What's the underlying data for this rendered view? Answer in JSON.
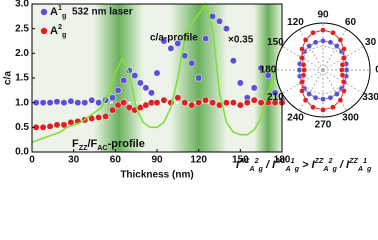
{
  "chart_data": [
    {
      "type": "scatter-line",
      "xlabel": "Thickness (nm)",
      "ylabel": "c/a",
      "xlim": [
        0,
        180
      ],
      "ylim": [
        0,
        3.0
      ],
      "xticks": [
        0,
        30,
        60,
        90,
        120,
        150,
        180
      ],
      "yticks": [
        {
          "value": 0,
          "label": "0.0"
        },
        {
          "value": 0.5,
          "label": "0.5"
        },
        {
          "value": 1.0,
          "label": "1.0"
        },
        {
          "value": 1.5,
          "label": "1.5"
        },
        {
          "value": 2.0,
          "label": "2.0"
        },
        {
          "value": 2.5,
          "label": "2.5"
        },
        {
          "value": 3.0,
          "label": "3.0"
        }
      ],
      "reference_line": 1.0,
      "shaded_ranges": [
        [
          45,
          80
        ],
        [
          100,
          140
        ],
        [
          160,
          180
        ]
      ],
      "annotations": {
        "laser": "532 nm laser",
        "profile": "c/a-profile",
        "scale": "×0.35"
      },
      "curve_label": [
        {
          "text": "F"
        },
        {
          "text": "ZZ",
          "script": "sub"
        },
        {
          "text": "/F"
        },
        {
          "text": "AC",
          "script": "sub"
        },
        {
          "text": "-profile"
        }
      ],
      "series": [
        {
          "name": [
            {
              "text": "A"
            },
            {
              "text": "1",
              "script": "sup"
            },
            {
              "text": "g",
              "script": "sub"
            }
          ],
          "color": "#5a4fd8",
          "kind": "scatter",
          "x": [
            3,
            8,
            13,
            18,
            23,
            28,
            33,
            38,
            43,
            48,
            53,
            58,
            62,
            66,
            70,
            74,
            78,
            82,
            86,
            90,
            95,
            100,
            105,
            110,
            115,
            120,
            125,
            130,
            135,
            140,
            145,
            150,
            155,
            160,
            165,
            170,
            175,
            180
          ],
          "values": [
            1.0,
            1.0,
            1.0,
            1.02,
            1.0,
            1.03,
            1.0,
            1.0,
            1.05,
            1.0,
            1.05,
            1.1,
            1.25,
            1.45,
            1.65,
            1.55,
            1.4,
            1.3,
            1.2,
            1.6,
            2.25,
            2.1,
            2.2,
            1.95,
            1.8,
            1.5,
            2.3,
            2.75,
            2.65,
            2.5,
            1.85,
            1.4,
            1.1,
            1.3,
            1.7,
            1.55,
            1.2,
            1.05
          ]
        },
        {
          "name": [
            {
              "text": "A"
            },
            {
              "text": "2",
              "script": "sup"
            },
            {
              "text": "g",
              "script": "sub"
            }
          ],
          "color": "#e02020",
          "kind": "scatter",
          "x": [
            3,
            8,
            13,
            18,
            23,
            28,
            33,
            38,
            43,
            48,
            53,
            58,
            62,
            66,
            70,
            74,
            78,
            82,
            86,
            90,
            95,
            100,
            105,
            110,
            115,
            120,
            125,
            130,
            135,
            140,
            145,
            150,
            155,
            160,
            165,
            170,
            175,
            180
          ],
          "values": [
            0.5,
            0.5,
            0.52,
            0.55,
            0.55,
            0.6,
            0.62,
            0.65,
            0.68,
            0.7,
            0.72,
            0.85,
            0.95,
            1.0,
            0.9,
            0.85,
            0.9,
            0.95,
            1.0,
            1.0,
            1.05,
            1.0,
            1.1,
            1.0,
            0.95,
            1.0,
            1.05,
            1.0,
            0.95,
            1.0,
            1.0,
            0.95,
            1.0,
            1.05,
            1.0,
            1.0,
            1.0,
            1.0
          ]
        },
        {
          "color": "#7de03a",
          "kind": "line",
          "x": [
            0,
            5,
            10,
            15,
            20,
            25,
            30,
            35,
            40,
            45,
            50,
            55,
            60,
            65,
            70,
            75,
            80,
            85,
            90,
            95,
            100,
            105,
            110,
            115,
            120,
            125,
            130,
            135,
            140,
            145,
            150,
            155,
            160,
            165,
            170,
            175,
            180
          ],
          "values": [
            0.2,
            0.25,
            0.3,
            0.35,
            0.4,
            0.5,
            0.55,
            0.6,
            0.7,
            0.8,
            0.9,
            1.2,
            1.6,
            1.9,
            1.6,
            0.9,
            0.6,
            0.5,
            0.5,
            0.6,
            0.9,
            1.5,
            2.3,
            2.6,
            2.8,
            3.0,
            2.5,
            1.2,
            0.6,
            0.4,
            0.35,
            0.35,
            0.45,
            0.7,
            1.2,
            1.6,
            1.9
          ]
        }
      ]
    },
    {
      "type": "polar",
      "rlim": [
        0,
        1
      ],
      "angle_ticks": [
        0,
        30,
        60,
        90,
        120,
        150,
        180,
        210,
        240,
        270,
        300,
        330
      ],
      "angles": [
        0,
        15,
        30,
        45,
        60,
        75,
        90,
        105,
        120,
        135,
        150,
        165,
        180,
        195,
        210,
        225,
        240,
        255,
        270,
        285,
        300,
        315,
        330,
        345
      ],
      "series": [
        {
          "color": "#5a4fd8",
          "values": [
            0.5,
            0.51,
            0.53,
            0.56,
            0.59,
            0.61,
            0.62,
            0.61,
            0.59,
            0.56,
            0.53,
            0.51,
            0.5,
            0.51,
            0.53,
            0.56,
            0.59,
            0.61,
            0.62,
            0.61,
            0.59,
            0.56,
            0.53,
            0.51
          ]
        },
        {
          "color": "#e02020",
          "values": [
            0.4,
            0.43,
            0.51,
            0.63,
            0.74,
            0.82,
            0.85,
            0.82,
            0.74,
            0.63,
            0.51,
            0.43,
            0.4,
            0.43,
            0.51,
            0.63,
            0.74,
            0.82,
            0.85,
            0.82,
            0.74,
            0.63,
            0.51,
            0.43
          ]
        }
      ],
      "formula": [
        {
          "text": "I"
        },
        {
          "text": "AC",
          "script": "sup"
        },
        {
          "text": "A",
          "script": "sub"
        },
        {
          "text": "2",
          "script": "sup"
        },
        {
          "text": "g",
          "script": "sub"
        },
        {
          "text": " / I"
        },
        {
          "text": "AC",
          "script": "sup"
        },
        {
          "text": "A",
          "script": "sub"
        },
        {
          "text": "1",
          "script": "sup"
        },
        {
          "text": "g",
          "script": "sub"
        },
        {
          "text": " > I"
        },
        {
          "text": "ZZ",
          "script": "sup"
        },
        {
          "text": "A",
          "script": "sub"
        },
        {
          "text": "2",
          "script": "sup"
        },
        {
          "text": "g",
          "script": "sub"
        },
        {
          "text": " / I"
        },
        {
          "text": "ZZ",
          "script": "sup"
        },
        {
          "text": "A",
          "script": "sub"
        },
        {
          "text": "1",
          "script": "sup"
        },
        {
          "text": "g",
          "script": "sub"
        }
      ]
    }
  ]
}
